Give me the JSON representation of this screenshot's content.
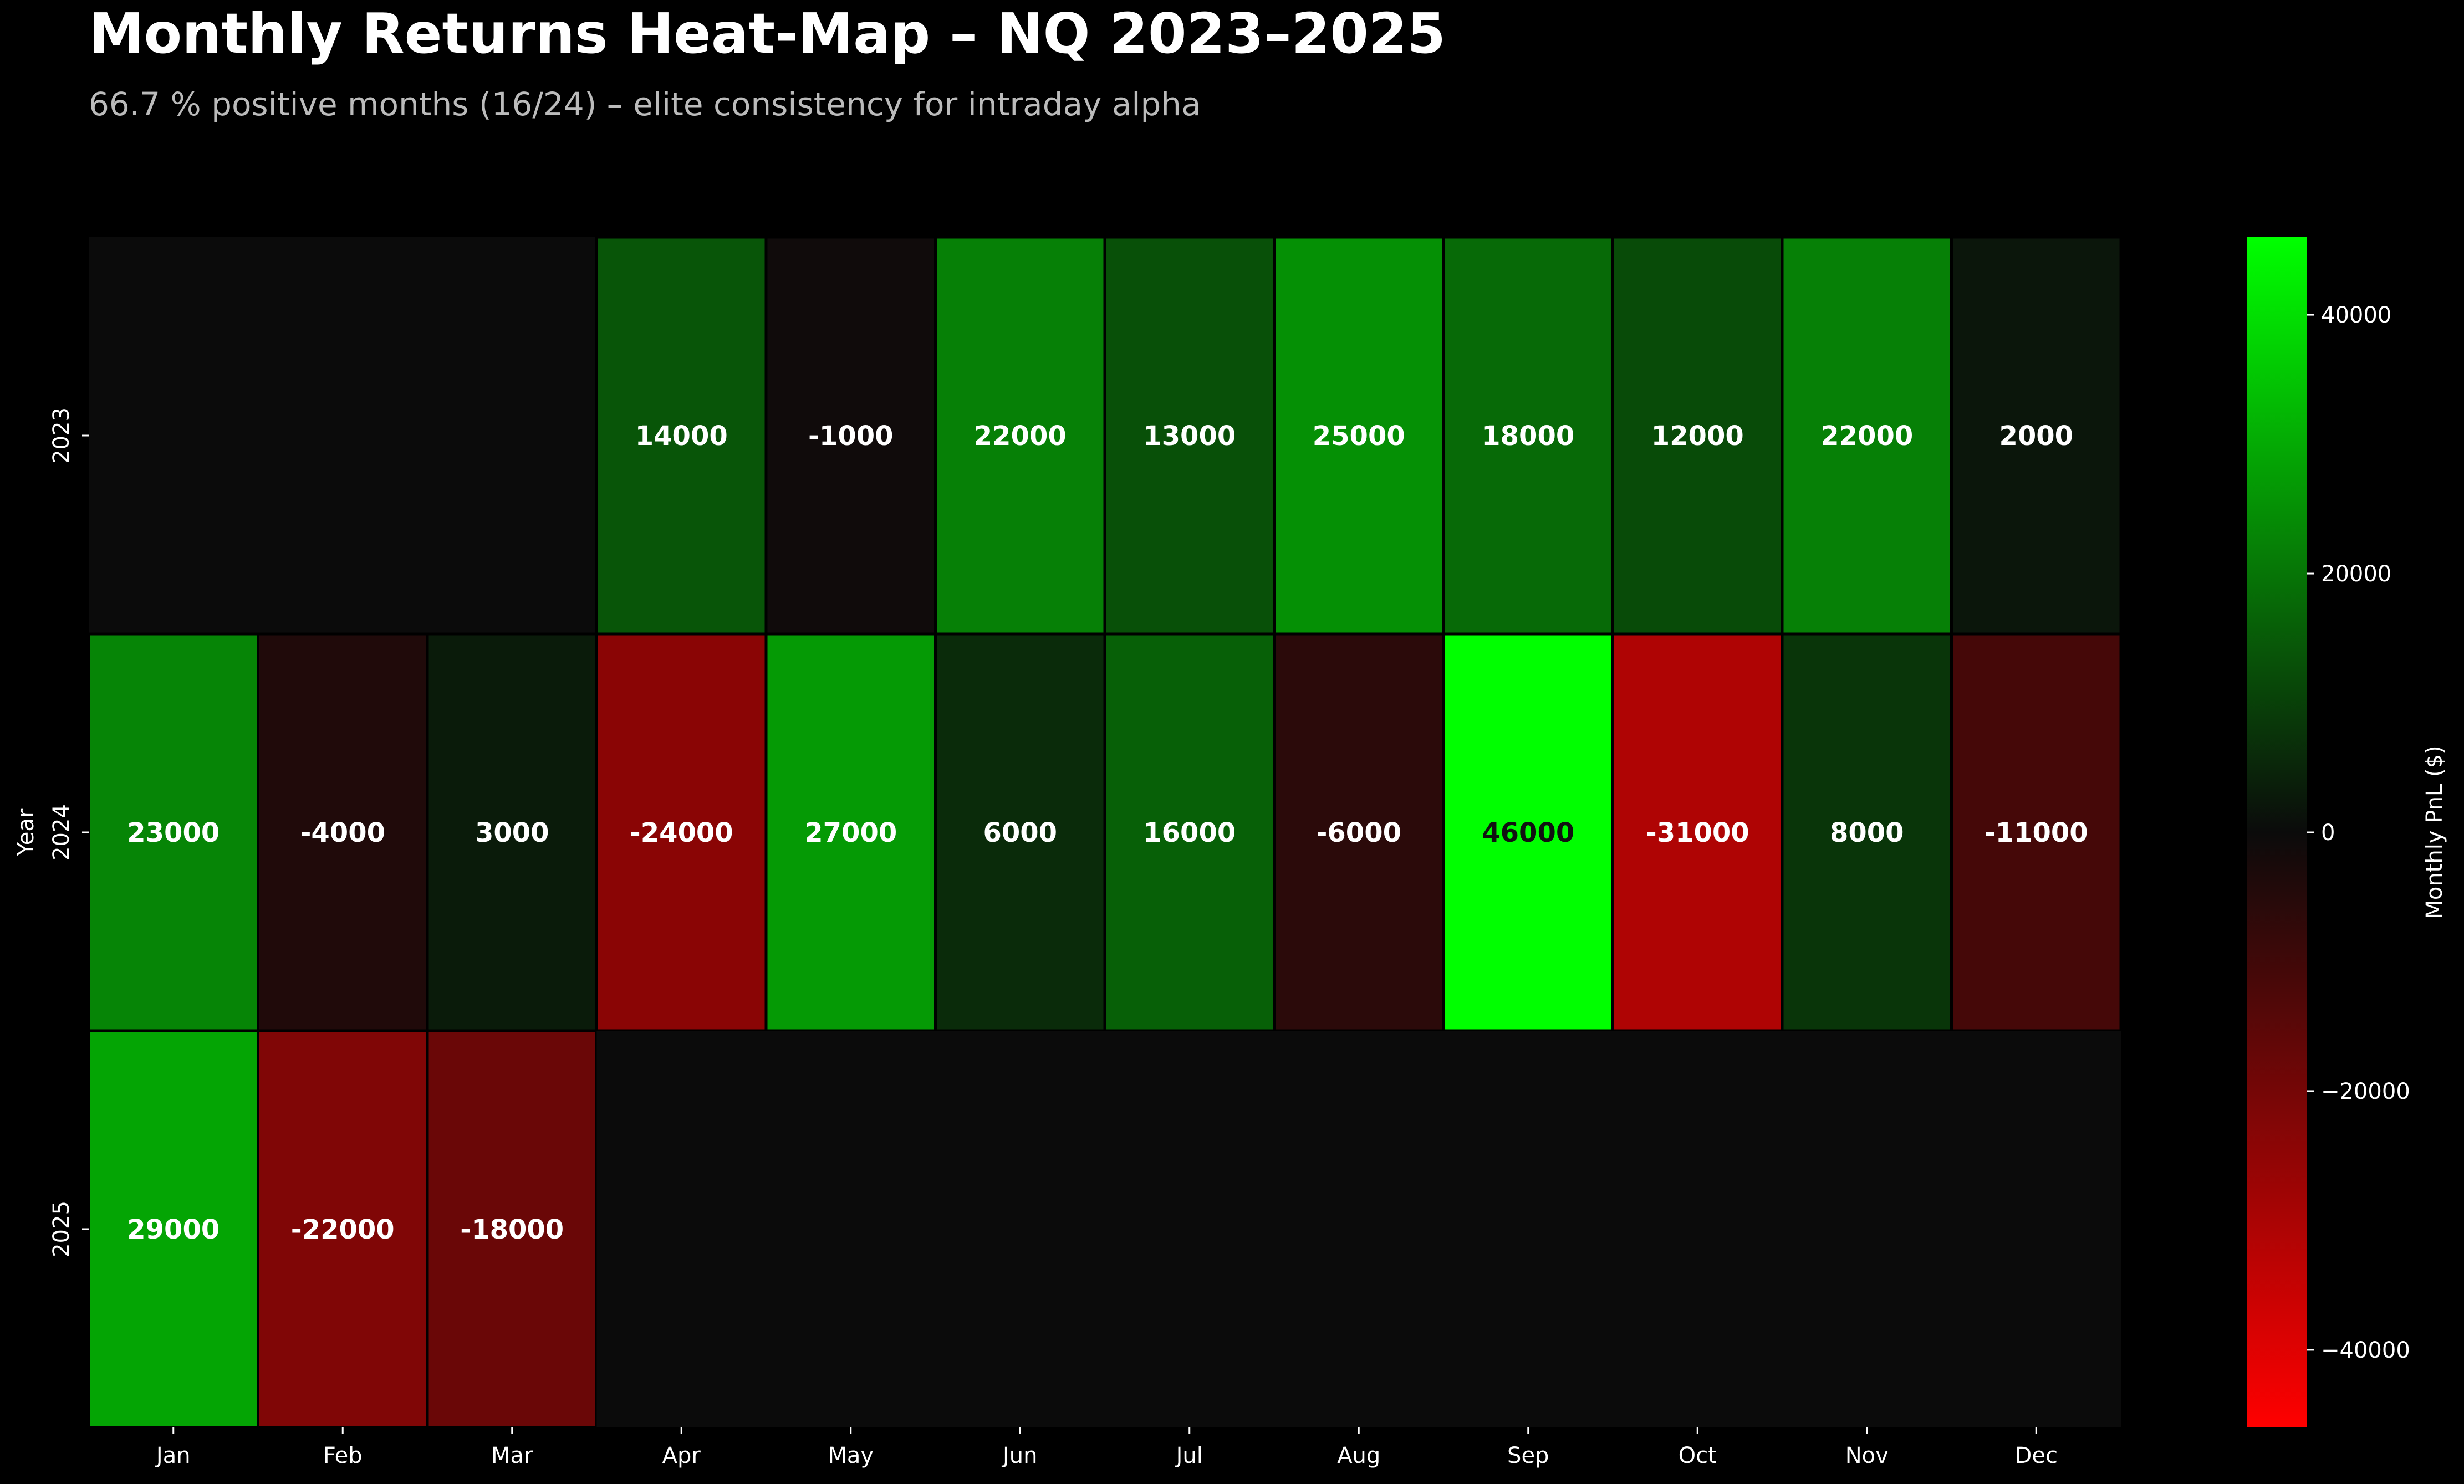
{
  "chart_data": {
    "type": "heatmap",
    "title": "Monthly Returns Heat-Map – NQ 2023–2025",
    "subtitle": "66.7 % positive months (16/24) – elite consistency for intraday alpha",
    "ylabel": "Year",
    "xlabel": "",
    "categories": [
      "Jan",
      "Feb",
      "Mar",
      "Apr",
      "May",
      "Jun",
      "Jul",
      "Aug",
      "Sep",
      "Oct",
      "Nov",
      "Dec"
    ],
    "rows": [
      "2023",
      "2024",
      "2025"
    ],
    "values": [
      [
        null,
        null,
        null,
        14000,
        -1000,
        22000,
        13000,
        25000,
        18000,
        12000,
        22000,
        2000
      ],
      [
        23000,
        -4000,
        3000,
        -24000,
        27000,
        6000,
        16000,
        -6000,
        46000,
        -31000,
        8000,
        -11000
      ],
      [
        29000,
        -22000,
        -18000,
        null,
        null,
        null,
        null,
        null,
        null,
        null,
        null,
        null
      ]
    ],
    "value_labels": [
      [
        "",
        "",
        "",
        "14000",
        "-1000",
        "22000",
        "13000",
        "25000",
        "18000",
        "12000",
        "22000",
        "2000"
      ],
      [
        "23000",
        "-4000",
        "3000",
        "-24000",
        "27000",
        "6000",
        "16000",
        "-6000",
        "46000",
        "-31000",
        "8000",
        "-11000"
      ],
      [
        "29000",
        "-22000",
        "-18000",
        "",
        "",
        "",
        "",
        "",
        "",
        "",
        "",
        ""
      ]
    ],
    "colorbar": {
      "label": "Monthly PnL ($)",
      "vmin": -46000,
      "vmax": 46000,
      "ticks": [
        40000,
        20000,
        0,
        -20000,
        -40000
      ],
      "tick_labels": [
        "40000",
        "20000",
        "0",
        "−20000",
        "−40000"
      ]
    },
    "colors": {
      "background": "#000000",
      "missing_cell": "#0b0b0b",
      "negative_extreme": "#ff0000",
      "zero": "#0b0b0b",
      "positive_extreme": "#00ff00",
      "cell_border": "#000000",
      "title": "#ffffff",
      "subtitle": "#bbbbbb",
      "axis_text": "#ffffff",
      "label_light": "#ffffff",
      "label_dark": "#111111"
    }
  }
}
